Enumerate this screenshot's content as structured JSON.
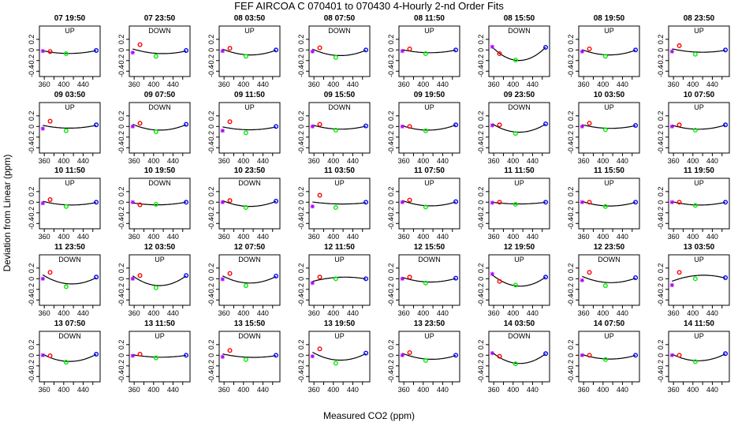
{
  "figure": {
    "title": "FEF   AIRCOA C   070401 to 070430   4-Hourly 2-nd Order Fits",
    "xlabel": "Measured CO2 (ppm)",
    "ylabel": "Deviation from Linear (ppm)"
  },
  "chart_data": {
    "type": "scatter",
    "layout": {
      "rows": 5,
      "cols": 8
    },
    "x_ticks": [
      360,
      400,
      440
    ],
    "y_ticks": [
      -0.4,
      -0.2,
      0.0,
      0.2
    ],
    "y_tick_labels": [
      "-0.4",
      "-0.2",
      "0",
      "0.2"
    ],
    "xlim": [
      350,
      475
    ],
    "ylim": [
      -0.5,
      0.45
    ],
    "colors": {
      "std1": "#b000ff",
      "std2": "#ff0000",
      "std3": "#00ee00",
      "std4": "#0000ff",
      "fit": "#000000"
    },
    "std_x": [
      357,
      372,
      405,
      467
    ],
    "panels": [
      {
        "title": "07 19:50",
        "dir": "UP",
        "y": [
          -0.02,
          -0.03,
          -0.07,
          -0.01
        ]
      },
      {
        "title": "07 23:50",
        "dir": "DOWN",
        "y": [
          -0.05,
          0.1,
          -0.12,
          -0.01
        ]
      },
      {
        "title": "08 03:50",
        "dir": "UP",
        "y": [
          -0.02,
          0.03,
          -0.12,
          0.0
        ]
      },
      {
        "title": "08 07:50",
        "dir": "DOWN",
        "y": [
          -0.03,
          0.04,
          -0.14,
          0.0
        ]
      },
      {
        "title": "08 11:50",
        "dir": "UP",
        "y": [
          -0.02,
          0.02,
          -0.07,
          0.0
        ]
      },
      {
        "title": "08 15:50",
        "dir": "DOWN",
        "y": [
          0.06,
          -0.07,
          -0.19,
          0.05
        ]
      },
      {
        "title": "08 19:50",
        "dir": "UP",
        "y": [
          -0.03,
          0.02,
          -0.12,
          0.0
        ]
      },
      {
        "title": "08 23:50",
        "dir": "UP",
        "y": [
          -0.03,
          0.08,
          -0.08,
          0.0
        ]
      },
      {
        "title": "09 03:50",
        "dir": "UP",
        "y": [
          -0.04,
          0.1,
          -0.08,
          0.03
        ]
      },
      {
        "title": "09 07:50",
        "dir": "DOWN",
        "y": [
          0.0,
          0.06,
          -0.1,
          0.04
        ]
      },
      {
        "title": "09 11:50",
        "dir": "UP",
        "y": [
          -0.08,
          0.09,
          -0.12,
          0.0
        ]
      },
      {
        "title": "09 15:50",
        "dir": "DOWN",
        "y": [
          0.0,
          0.04,
          -0.07,
          0.01
        ]
      },
      {
        "title": "09 19:50",
        "dir": "UP",
        "y": [
          0.0,
          0.0,
          -0.08,
          0.03
        ]
      },
      {
        "title": "09 23:50",
        "dir": "DOWN",
        "y": [
          0.02,
          0.03,
          -0.13,
          0.05
        ]
      },
      {
        "title": "10 03:50",
        "dir": "UP",
        "y": [
          0.0,
          0.06,
          -0.06,
          0.02
        ]
      },
      {
        "title": "10 07:50",
        "dir": "UP",
        "y": [
          0.0,
          0.03,
          -0.07,
          0.03
        ]
      },
      {
        "title": "10 11:50",
        "dir": "UP",
        "y": [
          -0.02,
          0.05,
          -0.08,
          0.0
        ]
      },
      {
        "title": "10 19:50",
        "dir": "DOWN",
        "y": [
          0.0,
          -0.05,
          -0.04,
          0.0
        ]
      },
      {
        "title": "10 23:50",
        "dir": "DOWN",
        "y": [
          0.0,
          0.03,
          -0.1,
          0.02
        ]
      },
      {
        "title": "11 03:50",
        "dir": "UP",
        "y": [
          -0.08,
          0.13,
          -0.1,
          0.0
        ]
      },
      {
        "title": "11 07:50",
        "dir": "UP",
        "y": [
          0.0,
          0.04,
          -0.09,
          0.01
        ]
      },
      {
        "title": "11 11:50",
        "dir": "UP",
        "y": [
          -0.01,
          0.0,
          -0.04,
          0.0
        ]
      },
      {
        "title": "11 15:50",
        "dir": "UP",
        "y": [
          0.0,
          0.0,
          -0.08,
          0.0
        ]
      },
      {
        "title": "11 19:50",
        "dir": "UP",
        "y": [
          0.0,
          0.0,
          -0.06,
          0.0
        ]
      },
      {
        "title": "11 23:50",
        "dir": "DOWN",
        "y": [
          0.0,
          0.12,
          -0.15,
          0.03
        ]
      },
      {
        "title": "12 03:50",
        "dir": "UP",
        "y": [
          0.0,
          0.06,
          -0.17,
          0.06
        ]
      },
      {
        "title": "12 07:50",
        "dir": "DOWN",
        "y": [
          -0.01,
          0.1,
          -0.13,
          0.05
        ]
      },
      {
        "title": "12 11:50",
        "dir": "UP",
        "y": [
          -0.08,
          0.03,
          0.0,
          0.0
        ]
      },
      {
        "title": "12 15:50",
        "dir": "DOWN",
        "y": [
          0.0,
          0.03,
          -0.08,
          0.01
        ]
      },
      {
        "title": "12 19:50",
        "dir": "UP",
        "y": [
          0.09,
          -0.05,
          -0.12,
          0.03
        ]
      },
      {
        "title": "12 23:50",
        "dir": "DOWN",
        "y": [
          -0.03,
          0.12,
          -0.13,
          0.02
        ]
      },
      {
        "title": "13 03:50",
        "dir": "UP",
        "y": [
          -0.12,
          0.12,
          0.0,
          0.02
        ]
      },
      {
        "title": "13 07:50",
        "dir": "DOWN",
        "y": [
          0.0,
          -0.01,
          -0.13,
          0.02
        ]
      },
      {
        "title": "13 11:50",
        "dir": "UP",
        "y": [
          -0.01,
          0.02,
          -0.05,
          0.0
        ]
      },
      {
        "title": "13 15:50",
        "dir": "DOWN",
        "y": [
          -0.03,
          0.09,
          -0.08,
          0.0
        ]
      },
      {
        "title": "13 19:50",
        "dir": "UP",
        "y": [
          -0.02,
          0.12,
          -0.15,
          0.04
        ]
      },
      {
        "title": "13 23:50",
        "dir": "UP",
        "y": [
          0.0,
          0.05,
          -0.1,
          0.0
        ]
      },
      {
        "title": "14 03:50",
        "dir": "DOWN",
        "y": [
          0.04,
          -0.02,
          -0.16,
          0.03
        ]
      },
      {
        "title": "14 07:50",
        "dir": "UP",
        "y": [
          0.0,
          0.0,
          -0.08,
          0.0
        ]
      },
      {
        "title": "14 11:50",
        "dir": "UP",
        "y": [
          0.0,
          0.0,
          -0.12,
          0.03
        ]
      }
    ]
  }
}
